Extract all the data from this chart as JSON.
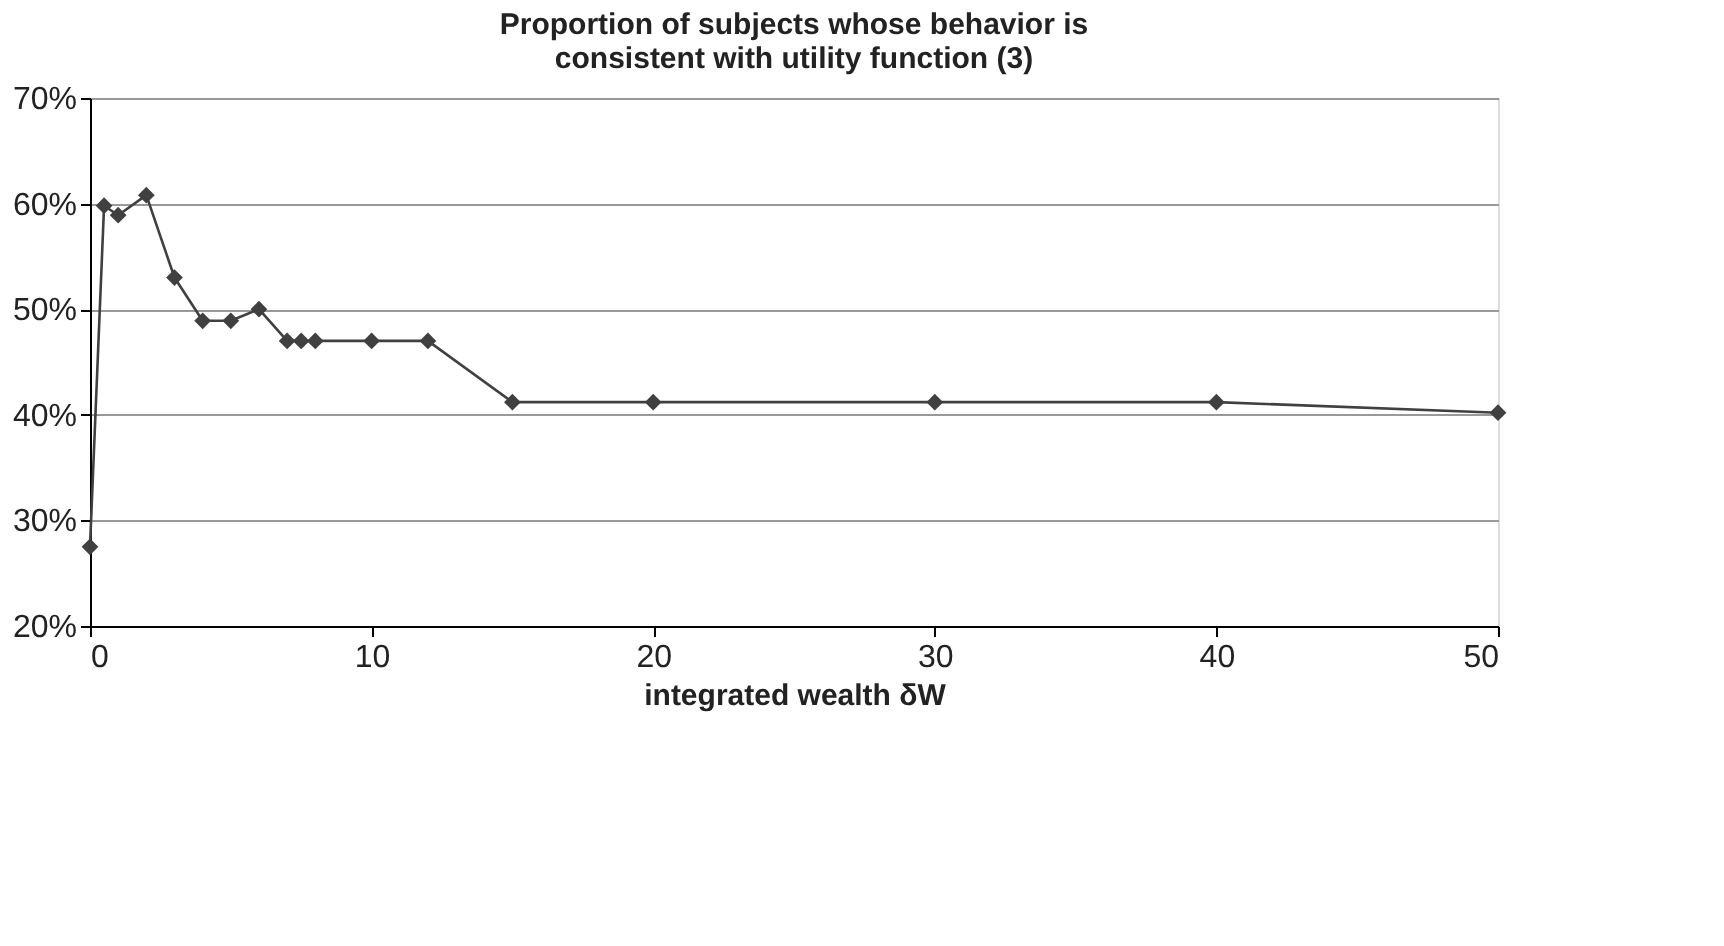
{
  "chart_data": {
    "type": "line",
    "title": [
      "Proportion of subjects whose behavior is",
      "consistent with utility function (3)"
    ],
    "xlabel": "integrated wealth  δW",
    "x": [
      0,
      0.5,
      1,
      2,
      3,
      4,
      5,
      6,
      7,
      7.5,
      8,
      10,
      12,
      15,
      20,
      30,
      40,
      50
    ],
    "series": [
      {
        "color": "#404040",
        "values": [
          27.5,
          59.8,
          58.9,
          60.8,
          53,
          48.9,
          48.9,
          50,
          47,
          47,
          47,
          47,
          47,
          41.2,
          41.2,
          41.2,
          41.2,
          40.2
        ]
      }
    ],
    "xlim": [
      0,
      50
    ],
    "xticks": [
      0,
      10,
      20,
      30,
      40,
      50
    ],
    "ylim": [
      20,
      70
    ],
    "yticks": [
      {
        "value": 20,
        "label": "20%"
      },
      {
        "value": 30,
        "label": "30%"
      },
      {
        "value": 40,
        "label": "40%"
      },
      {
        "value": 50,
        "label": "50%"
      },
      {
        "value": 60,
        "label": "60%"
      },
      {
        "value": 70,
        "label": "70%"
      }
    ],
    "grid": "y",
    "marker": "diamond",
    "line_style": "solid"
  }
}
